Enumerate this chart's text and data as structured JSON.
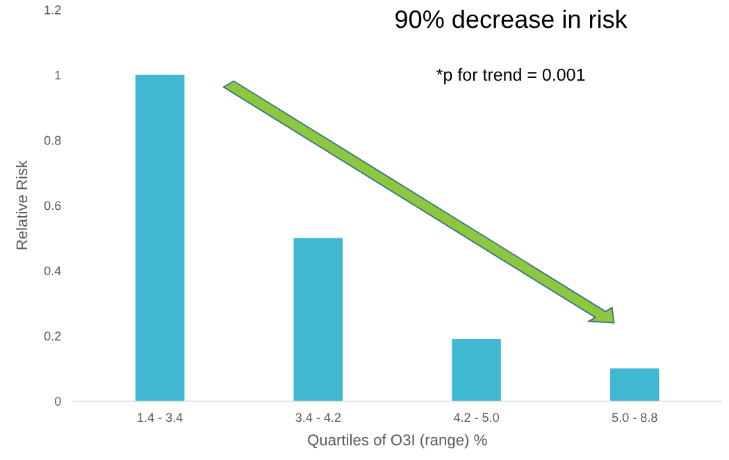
{
  "chart_data": {
    "type": "bar",
    "xlabel": "Quartiles of O3I (range) %",
    "ylabel": "Relative Risk",
    "categories": [
      "1.4 - 3.4",
      "3.4 - 4.2",
      "4.2 - 5.0",
      "5.0 - 8.8"
    ],
    "values": [
      1.0,
      0.5,
      0.19,
      0.1
    ],
    "color": "#41b8d2",
    "ylim": [
      0,
      1.2
    ],
    "yticks": [
      {
        "value": 0,
        "label": "0"
      },
      0.2,
      0.4,
      0.6,
      0.8,
      {
        "value": 1,
        "label": "1"
      },
      1.2
    ],
    "grid": false,
    "annotations": [
      "90% decrease in risk",
      "*p for trend = 0.001"
    ]
  }
}
